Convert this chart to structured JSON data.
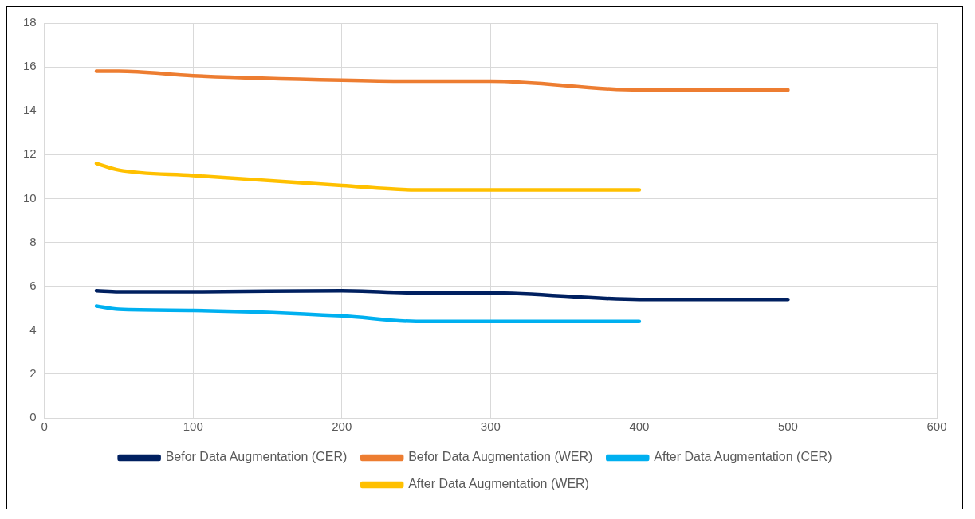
{
  "chart_data": {
    "type": "line",
    "xlim": [
      0,
      600
    ],
    "xticks": [
      0,
      100,
      200,
      300,
      400,
      500,
      600
    ],
    "ylim": [
      0,
      18
    ],
    "yticks": [
      0,
      2,
      4,
      6,
      8,
      10,
      12,
      14,
      16,
      18
    ],
    "grid": true,
    "legend": "bottom",
    "marker": "none",
    "line_style": "solid",
    "series": [
      {
        "name": "Befor Data Augmentation (CER)",
        "color": "#002060",
        "x": [
          35,
          50,
          100,
          200,
          250,
          300,
          400,
          500
        ],
        "values": [
          5.8,
          5.75,
          5.75,
          5.8,
          5.7,
          5.7,
          5.4,
          5.4
        ]
      },
      {
        "name": "Befor Data Augmentation (WER)",
        "color": "#ed7d31",
        "x": [
          35,
          50,
          100,
          200,
          250,
          300,
          400,
          500
        ],
        "values": [
          15.8,
          15.8,
          15.6,
          15.4,
          15.35,
          15.35,
          14.95,
          14.95
        ]
      },
      {
        "name": "After Data Augmentation (CER)",
        "color": "#00b0f0",
        "x": [
          35,
          50,
          100,
          200,
          250,
          300,
          400
        ],
        "values": [
          5.1,
          4.95,
          4.9,
          4.65,
          4.4,
          4.4,
          4.4
        ]
      },
      {
        "name": "After Data Augmentation (WER)",
        "color": "#ffc000",
        "x": [
          35,
          50,
          100,
          200,
          250,
          300,
          400
        ],
        "values": [
          11.6,
          11.3,
          11.05,
          10.6,
          10.4,
          10.4,
          10.4
        ]
      }
    ]
  }
}
